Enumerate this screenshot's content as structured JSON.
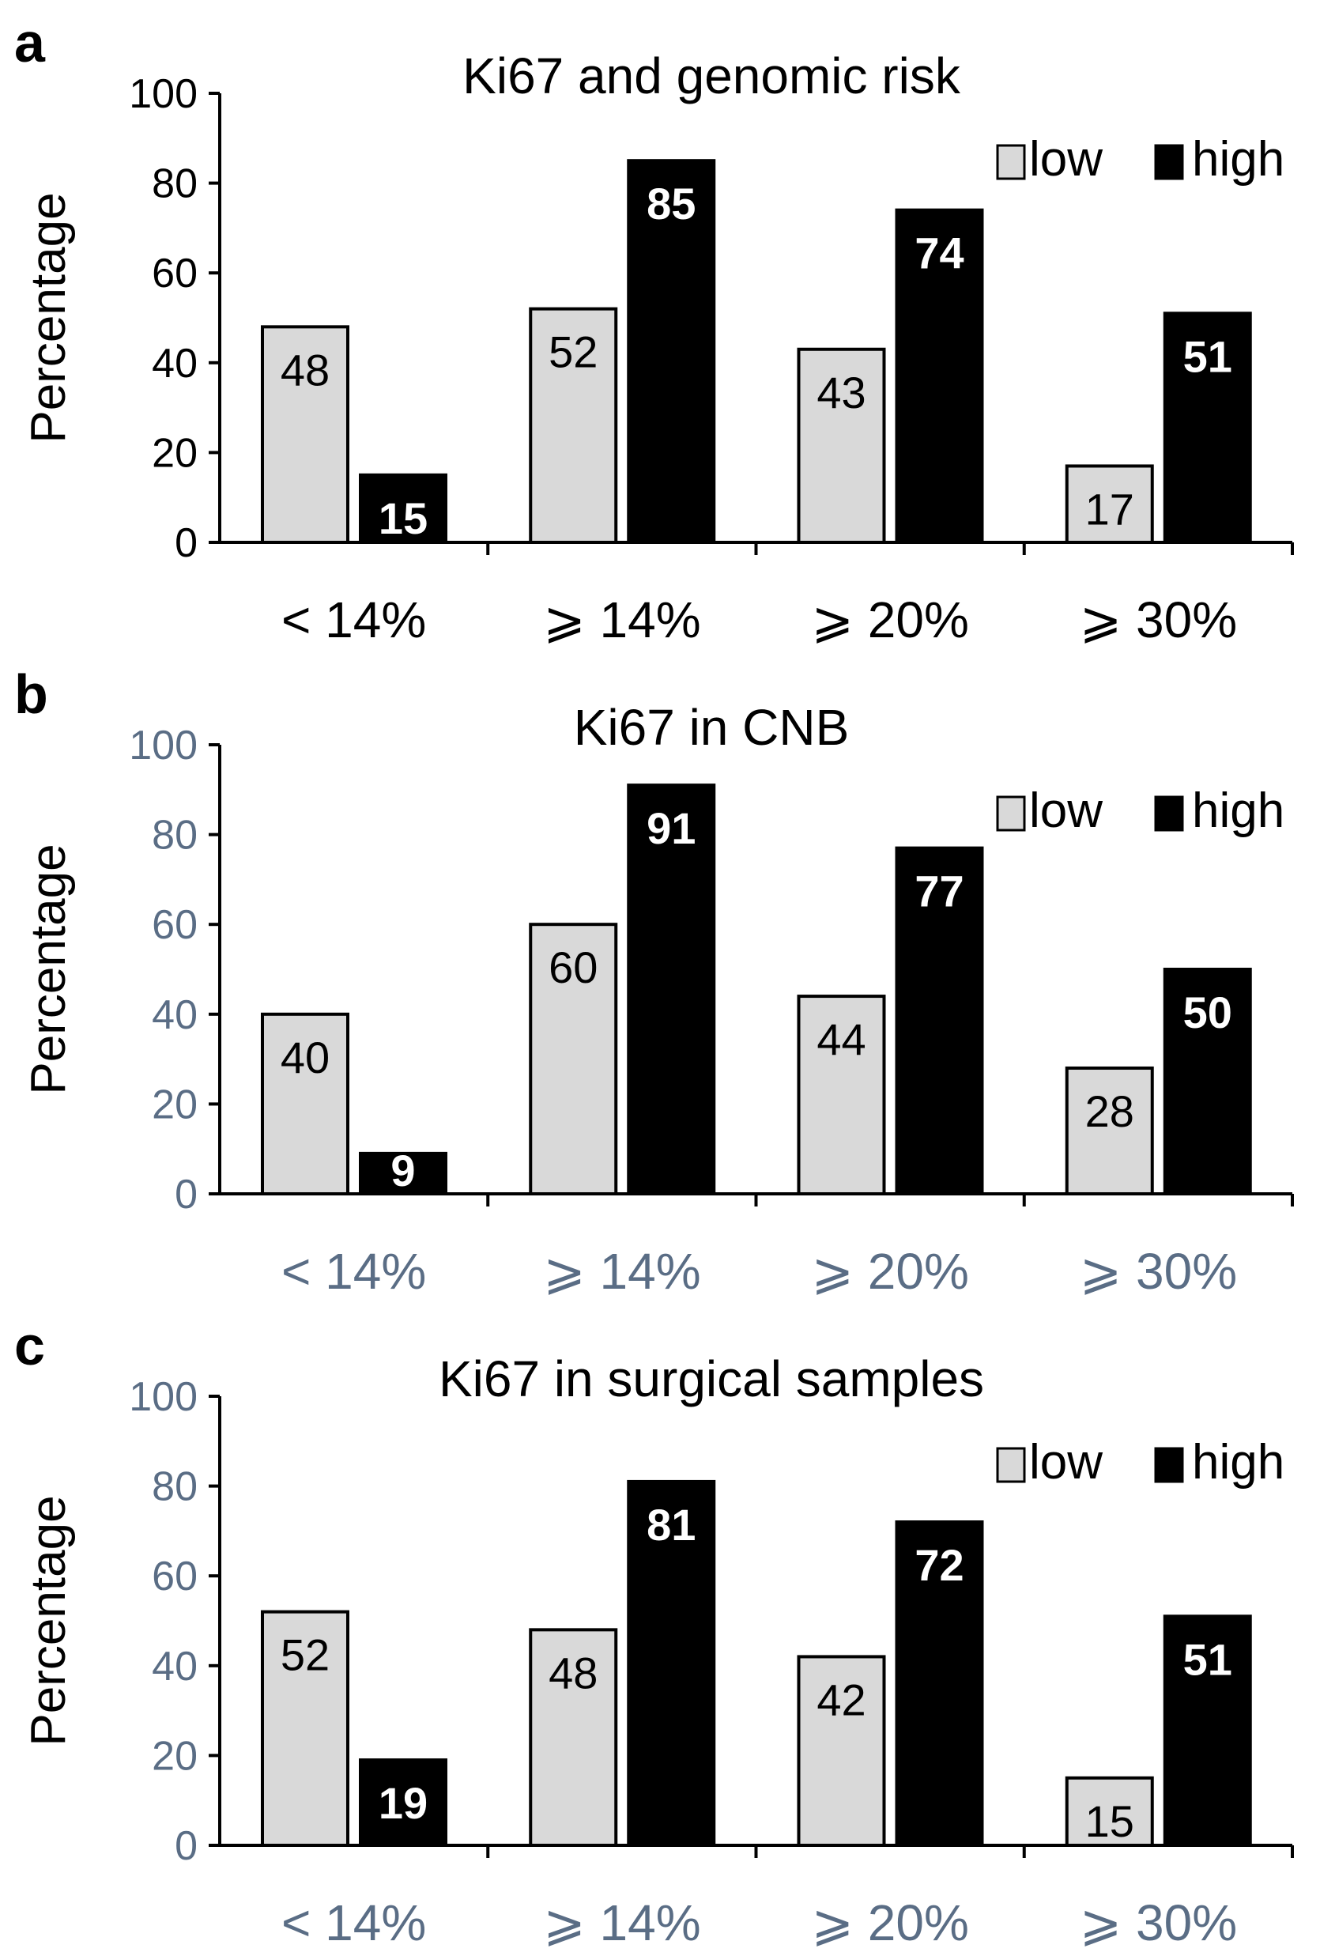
{
  "colors": {
    "low": "#d9d9d9",
    "high": "#000000",
    "axis_text_a": "#000000",
    "axis_text_bc": "#5a6d85"
  },
  "chart_data": [
    {
      "panel_label": "a",
      "type": "bar",
      "title": "Ki67 and genomic risk",
      "ylabel": "Percentage",
      "xlabel": "",
      "ylim": [
        0,
        100
      ],
      "yticks": [
        "0",
        "20",
        "40",
        "60",
        "80",
        "100"
      ],
      "categories": [
        "< 14%",
        "⩾ 14%",
        "⩾ 20%",
        "⩾ 30%"
      ],
      "legend": [
        "low",
        "high"
      ],
      "legend_position": "top-right",
      "series": [
        {
          "name": "low",
          "values": [
            48,
            52,
            43,
            17
          ]
        },
        {
          "name": "high",
          "values": [
            15,
            85,
            74,
            51
          ]
        }
      ]
    },
    {
      "panel_label": "b",
      "type": "bar",
      "title": "Ki67 in CNB",
      "ylabel": "Percentage",
      "xlabel": "",
      "ylim": [
        0,
        100
      ],
      "yticks": [
        "0",
        "20",
        "40",
        "60",
        "80",
        "100"
      ],
      "categories": [
        "< 14%",
        "⩾ 14%",
        "⩾ 20%",
        "⩾ 30%"
      ],
      "legend": [
        "low",
        "high"
      ],
      "legend_position": "top-right",
      "series": [
        {
          "name": "low",
          "values": [
            40,
            60,
            44,
            28
          ]
        },
        {
          "name": "high",
          "values": [
            9,
            91,
            77,
            50
          ]
        }
      ]
    },
    {
      "panel_label": "c",
      "type": "bar",
      "title": "Ki67 in surgical samples",
      "ylabel": "Percentage",
      "xlabel": "",
      "ylim": [
        0,
        100
      ],
      "yticks": [
        "0",
        "20",
        "40",
        "60",
        "80",
        "100"
      ],
      "categories": [
        "< 14%",
        "⩾ 14%",
        "⩾ 20%",
        "⩾ 30%"
      ],
      "legend": [
        "low",
        "high"
      ],
      "legend_position": "top-right",
      "series": [
        {
          "name": "low",
          "values": [
            52,
            48,
            42,
            15
          ]
        },
        {
          "name": "high",
          "values": [
            19,
            81,
            72,
            51
          ]
        }
      ]
    }
  ]
}
